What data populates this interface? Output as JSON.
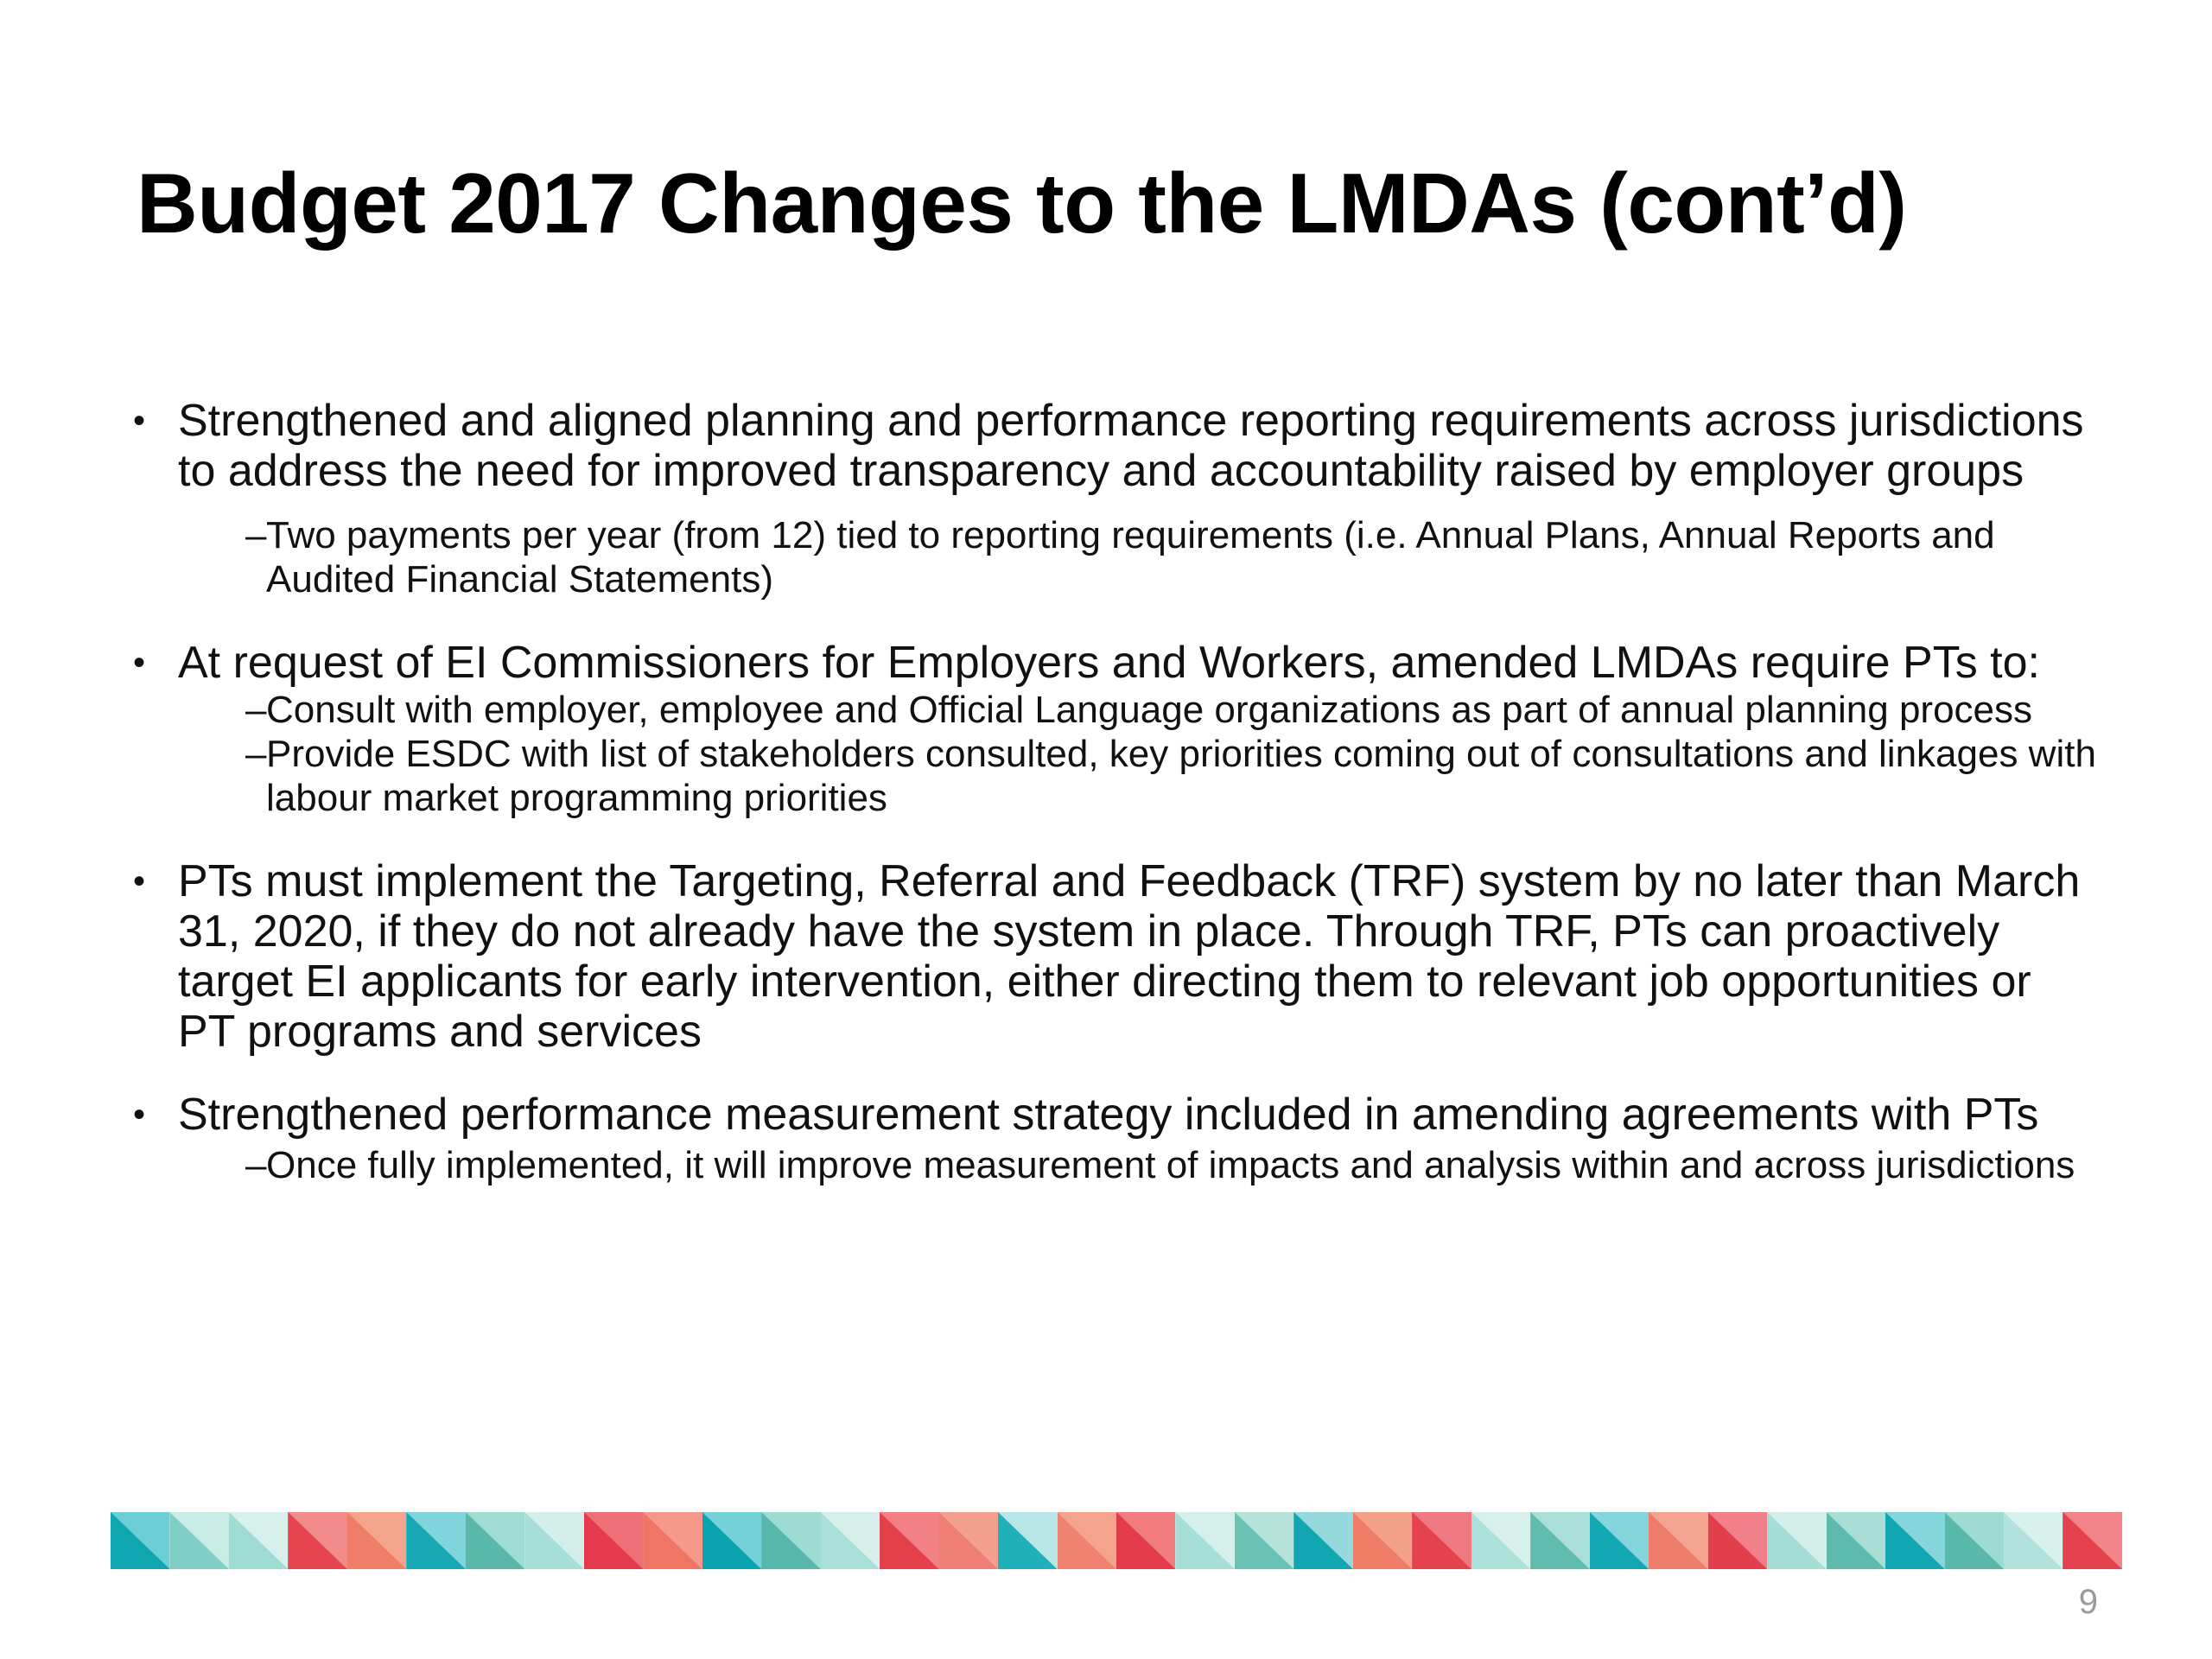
{
  "slide": {
    "title": "Budget 2017 Changes to the LMDAs (cont’d)",
    "page_number": "9"
  },
  "bullets": [
    {
      "marker": "•",
      "text": "Strengthened and aligned planning and performance reporting requirements across jurisdictions to address the need for improved transparency and accountability raised by employer groups",
      "subitems": [
        {
          "marker": "–",
          "text": "Two payments per year (from 12) tied to reporting requirements (i.e. Annual Plans, Annual Reports and Audited Financial Statements)"
        }
      ]
    },
    {
      "marker": "•",
      "text": "At request of EI Commissioners for Employers and Workers, amended LMDAs require PTs to:",
      "subitems": [
        {
          "marker": "–",
          "text": "Consult with employer, employee and Official Language organizations as part of annual planning process"
        },
        {
          "marker": "–",
          "text": "Provide ESDC with list of stakeholders consulted, key priorities coming out of consultations and linkages with labour market programming priorities"
        }
      ]
    },
    {
      "marker": "•",
      "text": "PTs must implement the Targeting, Referral and Feedback (TRF) system by no later than March 31, 2020, if they do not already have the system in place. Through TRF, PTs can proactively target EI applicants for early intervention, either directing them to relevant job opportunities or PT programs and services",
      "subitems": []
    },
    {
      "marker": "•",
      "text": "Strengthened performance measurement strategy included in amending agreements with PTs",
      "subitems": [
        {
          "marker": "–",
          "text": "Once fully implemented, it will improve measurement of impacts and analysis within and across jurisdictions"
        }
      ]
    }
  ],
  "decoration": {
    "stripe_tiles": [
      {
        "bg": "#6ccfd6",
        "tri": "#0fa6b2"
      },
      {
        "bg": "#c9ece7",
        "tri": "#7fcfc7"
      },
      {
        "bg": "#d7f0ec",
        "tri": "#9fdcd4"
      },
      {
        "bg": "#f28b8b",
        "tri": "#e4454f"
      },
      {
        "bg": "#f5a48c",
        "tri": "#ef7d68"
      },
      {
        "bg": "#7fd5db",
        "tri": "#16a9b4"
      },
      {
        "bg": "#9fdcd4",
        "tri": "#5ab8ab"
      },
      {
        "bg": "#d4efea",
        "tri": "#a5dfd8"
      },
      {
        "bg": "#ef6f78",
        "tri": "#e53a4d"
      },
      {
        "bg": "#f5998a",
        "tri": "#f07565"
      },
      {
        "bg": "#74d1d8",
        "tri": "#0ca3b0"
      },
      {
        "bg": "#9ddbd3",
        "tri": "#56b7aa"
      },
      {
        "bg": "#d6efeb",
        "tri": "#a8e0d9"
      },
      {
        "bg": "#f28085",
        "tri": "#e4404c"
      },
      {
        "bg": "#f4a08e",
        "tri": "#ef7f74"
      },
      {
        "bg": "#b8e6e6",
        "tri": "#1fb0b9"
      },
      {
        "bg": "#f5a38c",
        "tri": "#f08370"
      },
      {
        "bg": "#f27b80",
        "tri": "#e23b4b"
      },
      {
        "bg": "#d5efea",
        "tri": "#a6dfd7"
      },
      {
        "bg": "#b5e3dc",
        "tri": "#68c3b5"
      },
      {
        "bg": "#95d9dd",
        "tri": "#11a6b2"
      },
      {
        "bg": "#f4a18a",
        "tri": "#ef7d66"
      },
      {
        "bg": "#f07880",
        "tri": "#e4424f"
      },
      {
        "bg": "#d7f0ec",
        "tri": "#ade2db"
      },
      {
        "bg": "#a9dfd7",
        "tri": "#5fbcaf"
      },
      {
        "bg": "#84d6dc",
        "tri": "#12a7b3"
      },
      {
        "bg": "#f4a390",
        "tri": "#ee7c6a"
      },
      {
        "bg": "#f2808a",
        "tri": "#e33e4d"
      },
      {
        "bg": "#d4efea",
        "tri": "#a4ded6"
      },
      {
        "bg": "#a8ded6",
        "tri": "#5dbbad"
      },
      {
        "bg": "#84d6dc",
        "tri": "#10a6b2"
      },
      {
        "bg": "#9ddbd3",
        "tri": "#5ab8ab"
      },
      {
        "bg": "#d9f1ed",
        "tri": "#b1e3dc"
      },
      {
        "bg": "#f28389",
        "tri": "#e4414e"
      }
    ]
  }
}
